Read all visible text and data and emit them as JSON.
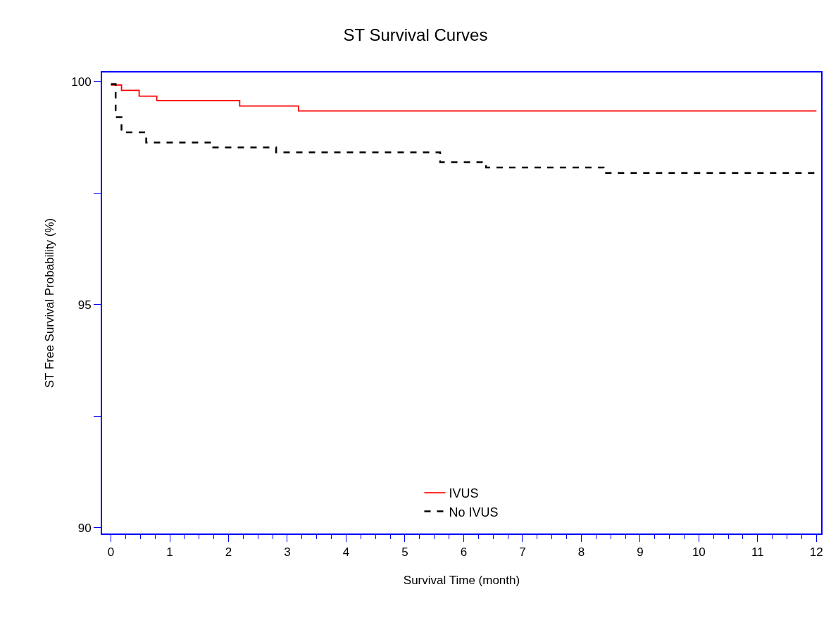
{
  "chart_data": {
    "type": "step",
    "title": "ST Survival Curves",
    "xlabel": "Survival Time (month)",
    "ylabel": "ST Free Survival Probability (%)",
    "xlim": [
      -0.15,
      12.08
    ],
    "ylim": [
      89.87,
      100.2
    ],
    "xticks": [
      0,
      1,
      2,
      3,
      4,
      5,
      6,
      7,
      8,
      9,
      10,
      11,
      12,
      {
        "value": 0.25,
        "label": null
      },
      {
        "value": 0.5,
        "label": null
      },
      {
        "value": 0.75,
        "label": null
      },
      {
        "value": 1.25,
        "label": null
      },
      {
        "value": 1.5,
        "label": null
      },
      {
        "value": 1.75,
        "label": null
      },
      {
        "value": 2.25,
        "label": null
      },
      {
        "value": 2.5,
        "label": null
      },
      {
        "value": 2.75,
        "label": null
      },
      {
        "value": 3.25,
        "label": null
      },
      {
        "value": 3.5,
        "label": null
      },
      {
        "value": 3.75,
        "label": null
      },
      {
        "value": 4.25,
        "label": null
      },
      {
        "value": 4.5,
        "label": null
      },
      {
        "value": 4.75,
        "label": null
      },
      {
        "value": 5.25,
        "label": null
      },
      {
        "value": 5.5,
        "label": null
      },
      {
        "value": 5.75,
        "label": null
      },
      {
        "value": 6.25,
        "label": null
      },
      {
        "value": 6.5,
        "label": null
      },
      {
        "value": 6.75,
        "label": null
      },
      {
        "value": 7.25,
        "label": null
      },
      {
        "value": 7.5,
        "label": null
      },
      {
        "value": 7.75,
        "label": null
      },
      {
        "value": 8.25,
        "label": null
      },
      {
        "value": 8.5,
        "label": null
      },
      {
        "value": 8.75,
        "label": null
      },
      {
        "value": 9.25,
        "label": null
      },
      {
        "value": 9.5,
        "label": null
      },
      {
        "value": 9.75,
        "label": null
      },
      {
        "value": 10.25,
        "label": null
      },
      {
        "value": 10.5,
        "label": null
      },
      {
        "value": 10.75,
        "label": null
      },
      {
        "value": 11.25,
        "label": null
      },
      {
        "value": 11.5,
        "label": null
      },
      {
        "value": 11.75,
        "label": null
      }
    ],
    "yticks": [
      90,
      95,
      100,
      {
        "value": 92.5,
        "label": null
      },
      {
        "value": 97.5,
        "label": null
      }
    ],
    "legend": "bottom",
    "marker": "none",
    "series": [
      {
        "name": "IVUS",
        "color": "#ff0000",
        "line_style": "solid",
        "x": [
          0,
          0.18,
          0.48,
          0.78,
          2.19,
          3.19,
          12
        ],
        "values": [
          99.92,
          99.8,
          99.67,
          99.57,
          99.45,
          99.34,
          99.34
        ]
      },
      {
        "name": "No IVUS",
        "color": "#000000",
        "line_style": "dashed",
        "x": [
          0,
          0.08,
          0.18,
          0.6,
          1.74,
          2.81,
          5.6,
          6.38,
          8.38,
          12
        ],
        "values": [
          99.94,
          99.2,
          98.86,
          98.63,
          98.52,
          98.41,
          98.19,
          98.07,
          97.95,
          97.95
        ]
      }
    ]
  }
}
